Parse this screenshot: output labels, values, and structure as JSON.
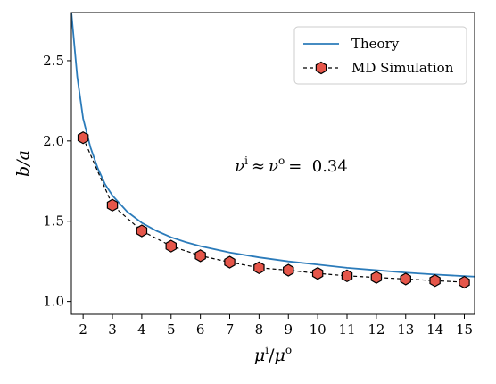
{
  "chart_data": {
    "type": "line",
    "xlabel": "μi/μo",
    "xlabel_parts": {
      "base1": "μ",
      "sup1": "i",
      "sep": "/",
      "base2": "μ",
      "sup2": "o"
    },
    "ylabel": "b/a",
    "xlim": [
      1.6,
      15.35
    ],
    "ylim": [
      0.92,
      2.8
    ],
    "xticks": [
      2,
      3,
      4,
      5,
      6,
      7,
      8,
      9,
      10,
      11,
      12,
      13,
      14,
      15
    ],
    "yticks": [
      1.0,
      1.5,
      2.0,
      2.5
    ],
    "ytick_labels": [
      "1.0",
      "1.5",
      "2.0",
      "2.5"
    ],
    "grid": false,
    "legend_position": "top-right",
    "annotation": {
      "text": "νi ≈ νo = 0.34",
      "parts": {
        "nu1": "ν",
        "sup1": "i",
        "approx": "≈",
        "nu2": "ν",
        "sup2": "o",
        "eq_value": "=  0.34"
      },
      "x": 9.1,
      "y": 1.81
    },
    "series": [
      {
        "name": "Theory",
        "style": "solid-line",
        "color": "#2b7bba",
        "x": [
          1.6,
          1.8,
          2.0,
          2.25,
          2.5,
          2.75,
          3.0,
          3.5,
          4.0,
          4.5,
          5.0,
          5.5,
          6.0,
          7.0,
          8.0,
          9.0,
          10.0,
          11.0,
          12.0,
          13.0,
          14.0,
          15.0,
          15.35
        ],
        "y": [
          2.8,
          2.4,
          2.14,
          1.96,
          1.83,
          1.73,
          1.66,
          1.56,
          1.49,
          1.44,
          1.4,
          1.37,
          1.345,
          1.305,
          1.275,
          1.25,
          1.23,
          1.21,
          1.195,
          1.18,
          1.168,
          1.158,
          1.155
        ]
      },
      {
        "name": "MD Simulation",
        "style": "dashed-line-hexagon-markers",
        "color": "#000000",
        "marker_color": "#e5564a",
        "x": [
          2,
          3,
          4,
          5,
          6,
          7,
          8,
          9,
          10,
          11,
          12,
          13,
          14,
          15
        ],
        "y": [
          2.02,
          1.6,
          1.44,
          1.345,
          1.285,
          1.245,
          1.21,
          1.195,
          1.175,
          1.16,
          1.15,
          1.14,
          1.13,
          1.12
        ]
      }
    ]
  }
}
